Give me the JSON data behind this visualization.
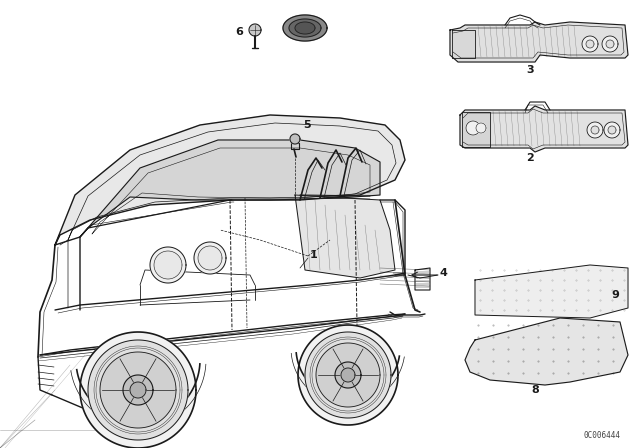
{
  "background_color": "#ffffff",
  "line_color": "#1a1a1a",
  "watermark": "0C006444",
  "fig_width": 6.4,
  "fig_height": 4.48,
  "dpi": 100
}
